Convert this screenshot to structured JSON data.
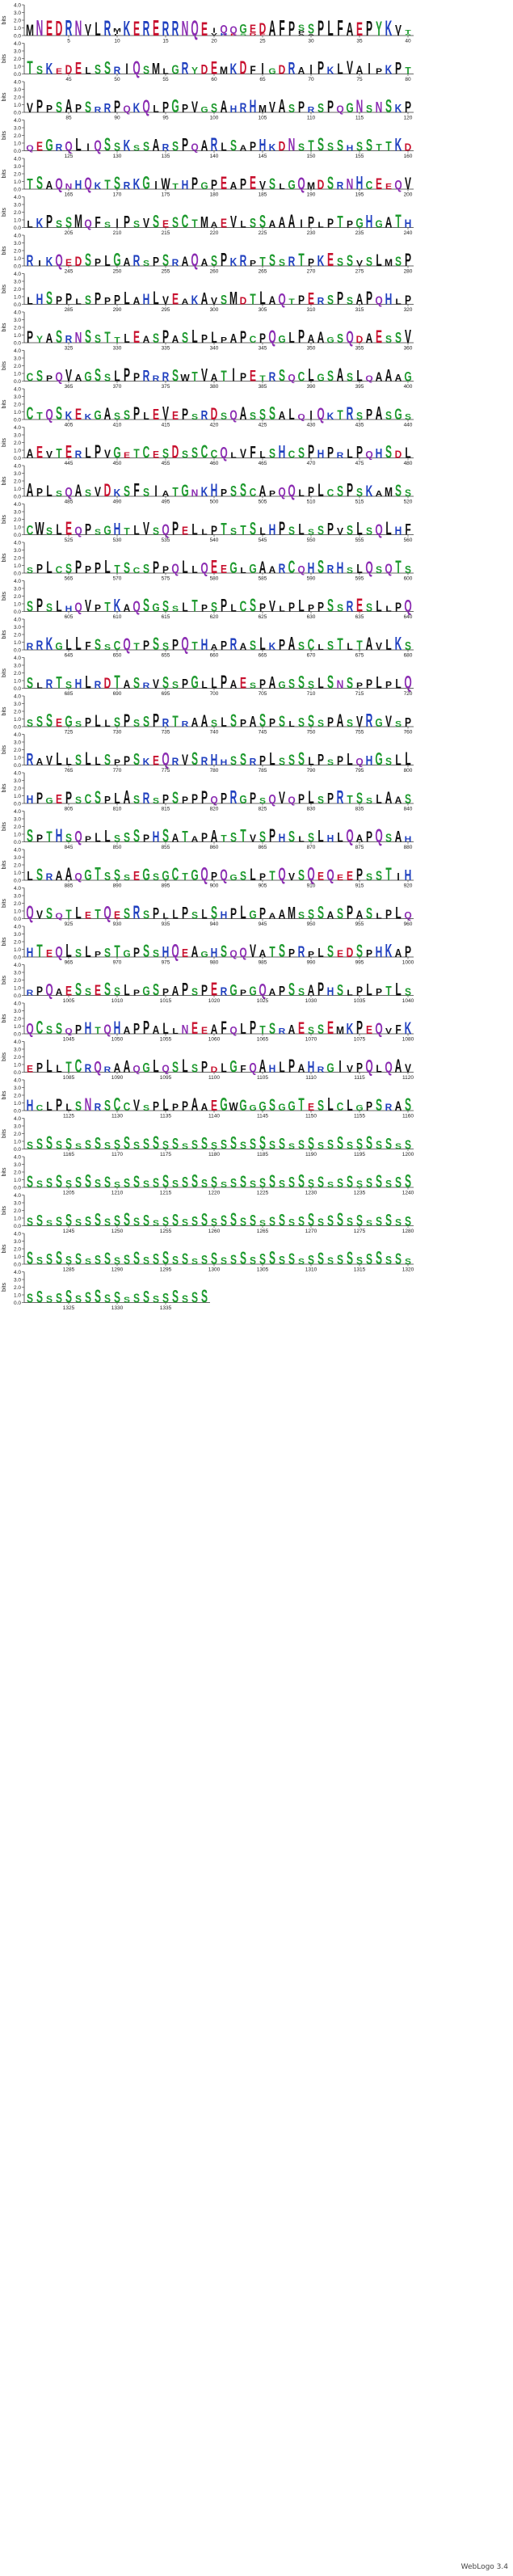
{
  "chart_data": {
    "type": "sequence_logo",
    "ylabel": "bits",
    "ylim": [
      0,
      4
    ],
    "yticks": [
      "0.0",
      "1.0",
      "2.0",
      "3.0",
      "4.0"
    ],
    "positions_per_row": 40,
    "total_positions": 1339,
    "first_position": 1,
    "tick_every": 5,
    "sequence": "MNEDRNVLRMKERERRNQEIQQGEDAFPPSSPLFAEPYKVTSKEDELSSRIQSMLGRYDEMKDFIGDRAIPKLVAIPKPTVPPSAPSRRPQKQLPGPVGSAHRHMVASPRSPQGNSNSKPQEGRQLIQSSKSSARSPQARLSAPHKDNSTSSSHSSTTKDTSAQNHQKTSRKGIWTHPGPEAPEVSLGQMDSRNHCEEQVLKPSSMQFSIPSVSESCTMAEVLSSAAAIPLPTPGHGATHRIKQEDSPLGARSPSRAQASPKRPTSSRTPKESSVSLMSPLHSPPLSPPPLAHLVEAKAVSMDTLAQTPERSPSAPQHLPPYASRNSSTTLEASPASLPLPAPCPQGLPAAGSQDAESSVCSPQVAGSSLPPRRRSWTVATIPETRSQCLGSASLQAAAGCTQSKEKGASSPLEVEPSRDSQASSSALQIQKTRSPASGSAEVTERLPVGETCESDSSCCQLVFLSHCSPHPRLPQHSDLAPLSQASVDKSFSIATGNKHPSSCAPQQLPLCSPSKAMSSCWSLEQPSGHTLVSQPELLPTSTSLHPSLSSPVSLSQLHFSPLCSPPPLTSCSPPQLLQEEGLGAARCQHSRHSLQSQTSSPSLHQVPTKAQSGSSLTPSPLCSPVLPLPPSSRESLLPQRRKGLLFSSCQTPSSPQTHAPRASLKPASCLSTLTAVLKSSLRTSHLRDTASRVSSPGLLPAESPAGSSSLSNSPPLPLQSSSEGSPLLSPSSPRTRAASLSPASPSLSSSPASVRGVSPRAVLLSLLSPPSKEQRVSRHHSSRPLSSSLPSPLQHGSLLHPGEPSCSPLASRSPSPPPQPRGPSQVQPLSPRTSSLAASSPTHSQPLLSSSPHSATAPATSTVSPHSLSLHLQAPQSAHLSRAAQGTSSSEGSGCTGQPQGSLPTQVSQEQEEPSSTIHQVSQTLETQESRSPLLPSLSHPLGPAAMSSSASPASLPLQHTEQLSLPSTGPSSHQEAGHSQQVATSPRPLSEDSPHKAPRPQAESSESSLPGSPAPSPERGPGQAPSSAPHSLPLPTLSQCSSQPHTQHAPPALLNEEAFQLPTSRAESSEMKPEQVFKEPLLTCRQRAAQGLQSLSPDLGFQAHLPAHRGIVPQLQAVHCLPLSNRSCCVSPLPPAAEGWGGGSGGTESLCLGPSRA",
    "logo_columns": [
      {
        "pos": 1,
        "letters": [
          {
            "a": "M",
            "b": 1.52
          }
        ]
      },
      {
        "pos": 2,
        "letters": [
          {
            "a": "N",
            "b": 2.11
          }
        ]
      },
      {
        "pos": 3,
        "letters": [
          {
            "a": "E",
            "b": 2.05
          }
        ]
      },
      {
        "pos": 4,
        "letters": [
          {
            "a": "D",
            "b": 1.98
          }
        ]
      },
      {
        "pos": 5,
        "letters": [
          {
            "a": "R",
            "b": 2.14
          }
        ]
      },
      {
        "pos": 6,
        "letters": [
          {
            "a": "N",
            "b": 2.08
          }
        ]
      },
      {
        "pos": 7,
        "letters": [
          {
            "a": "V",
            "b": 1.37
          },
          {
            "a": "I",
            "b": 0.22
          }
        ]
      },
      {
        "pos": 8,
        "letters": [
          {
            "a": "L",
            "b": 1.87
          }
        ]
      },
      {
        "pos": 9,
        "letters": [
          {
            "a": "R",
            "b": 2.03
          }
        ]
      },
      {
        "pos": 10,
        "letters": [
          {
            "a": "M",
            "b": 0.46
          },
          {
            "a": "I",
            "b": 0.27
          },
          {
            "a": "L",
            "b": 0.19
          }
        ]
      },
      {
        "pos": 11,
        "letters": [
          {
            "a": "K",
            "b": 2.01
          }
        ]
      },
      {
        "pos": 12,
        "letters": [
          {
            "a": "E",
            "b": 1.93
          }
        ]
      },
      {
        "pos": 13,
        "letters": [
          {
            "a": "R",
            "b": 1.96
          }
        ]
      },
      {
        "pos": 14,
        "letters": [
          {
            "a": "E",
            "b": 2.12
          }
        ]
      },
      {
        "pos": 15,
        "letters": [
          {
            "a": "R",
            "b": 1.89
          }
        ]
      },
      {
        "pos": 16,
        "letters": [
          {
            "a": "R",
            "b": 2.01
          }
        ]
      },
      {
        "pos": 17,
        "letters": [
          {
            "a": "N",
            "b": 1.97
          }
        ]
      },
      {
        "pos": 18,
        "letters": [
          {
            "a": "Q",
            "b": 2.06
          }
        ]
      },
      {
        "pos": 19,
        "letters": [
          {
            "a": "E",
            "b": 1.88
          }
        ]
      },
      {
        "pos": 20,
        "letters": [
          {
            "a": "I",
            "b": 0.64
          },
          {
            "a": "V",
            "b": 0.35
          }
        ]
      },
      {
        "pos": 21,
        "letters": [
          {
            "a": "Q",
            "b": 1.11
          },
          {
            "a": "H",
            "b": 0.32
          }
        ]
      },
      {
        "pos": 22,
        "letters": [
          {
            "a": "Q",
            "b": 1.02
          },
          {
            "a": "E",
            "b": 0.28
          }
        ]
      },
      {
        "pos": 23,
        "letters": [
          {
            "a": "G",
            "b": 1.24
          },
          {
            "a": "S",
            "b": 0.31
          }
        ]
      },
      {
        "pos": 24,
        "letters": [
          {
            "a": "E",
            "b": 1.15
          },
          {
            "a": "D",
            "b": 0.36
          }
        ]
      },
      {
        "pos": 25,
        "letters": [
          {
            "a": "D",
            "b": 1.42
          },
          {
            "a": "E",
            "b": 0.26
          }
        ]
      },
      {
        "pos": 26,
        "letters": [
          {
            "a": "A",
            "b": 2.05
          }
        ]
      },
      {
        "pos": 27,
        "letters": [
          {
            "a": "F",
            "b": 2.11
          }
        ]
      },
      {
        "pos": 28,
        "letters": [
          {
            "a": "P",
            "b": 1.94
          }
        ]
      },
      {
        "pos": 29,
        "letters": [
          {
            "a": "S",
            "b": 0.82
          },
          {
            "a": "P",
            "b": 0.41
          },
          {
            "a": "A",
            "b": 0.2
          }
        ]
      },
      {
        "pos": 30,
        "letters": [
          {
            "a": "S",
            "b": 1.32
          },
          {
            "a": "A",
            "b": 0.24
          }
        ]
      },
      {
        "pos": 31,
        "letters": [
          {
            "a": "P",
            "b": 2.04
          }
        ]
      },
      {
        "pos": 32,
        "letters": [
          {
            "a": "L",
            "b": 2.09
          }
        ]
      },
      {
        "pos": 33,
        "letters": [
          {
            "a": "F",
            "b": 2.13
          }
        ]
      },
      {
        "pos": 34,
        "letters": [
          {
            "a": "A",
            "b": 1.75
          }
        ]
      },
      {
        "pos": 35,
        "letters": [
          {
            "a": "E",
            "b": 1.86
          }
        ]
      },
      {
        "pos": 36,
        "letters": [
          {
            "a": "P",
            "b": 1.98
          }
        ]
      },
      {
        "pos": 37,
        "letters": [
          {
            "a": "Y",
            "b": 1.93
          }
        ]
      },
      {
        "pos": 38,
        "letters": [
          {
            "a": "K",
            "b": 2.08
          }
        ]
      },
      {
        "pos": 39,
        "letters": [
          {
            "a": "V",
            "b": 1.22
          },
          {
            "a": "I",
            "b": 0.21
          }
        ]
      },
      {
        "pos": 40,
        "letters": [
          {
            "a": "T",
            "b": 0.55
          },
          {
            "a": "S",
            "b": 0.22
          }
        ]
      }
    ]
  }
}
